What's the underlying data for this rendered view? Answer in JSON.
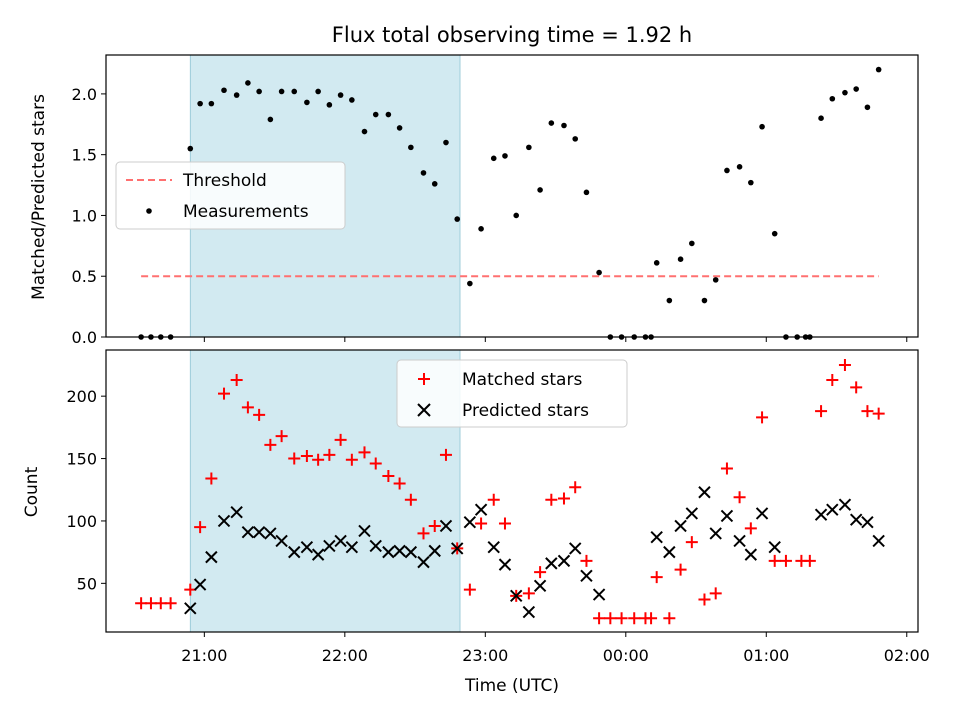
{
  "chart_data": {
    "type": "scatter",
    "title": "Flux total observing time = 1.92 h",
    "xlabel": "Time (UTC)",
    "x_unit": "hours since 21:00 UTC",
    "xlim": [
      -0.7,
      5.08
    ],
    "xticks": [
      {
        "value": 0,
        "label": "21:00"
      },
      {
        "value": 1,
        "label": "22:00"
      },
      {
        "value": 2,
        "label": "23:00"
      },
      {
        "value": 3,
        "label": "00:00"
      },
      {
        "value": 4,
        "label": "01:00"
      },
      {
        "value": 5,
        "label": "02:00"
      }
    ],
    "highlight_span": {
      "from": -0.1,
      "to": 1.82,
      "color": "#add8e6"
    },
    "panels": [
      {
        "name": "ratio",
        "ylabel": "Matched/Predicted stars",
        "ylim": [
          0,
          2.32
        ],
        "yticks": [
          {
            "value": 0,
            "label": "0.0"
          },
          {
            "value": 0.5,
            "label": "0.5"
          },
          {
            "value": 1.0,
            "label": "1.0"
          },
          {
            "value": 1.5,
            "label": "1.5"
          },
          {
            "value": 2.0,
            "label": "2.0"
          }
        ],
        "legend": {
          "position": "center-left"
        },
        "series": [
          {
            "name": "Threshold",
            "kind": "dashed-line",
            "color": "#ff7070",
            "y": 0.5,
            "x_range": [
              -0.45,
              4.8
            ]
          },
          {
            "name": "Measurements",
            "kind": "dots",
            "color": "#000000",
            "points": [
              [
                -0.45,
                0
              ],
              [
                -0.38,
                0
              ],
              [
                -0.31,
                0
              ],
              [
                -0.24,
                0
              ],
              [
                -0.1,
                1.55
              ],
              [
                -0.03,
                1.92
              ],
              [
                0.05,
                1.92
              ],
              [
                0.14,
                2.03
              ],
              [
                0.23,
                1.99
              ],
              [
                0.31,
                2.09
              ],
              [
                0.39,
                2.02
              ],
              [
                0.47,
                1.79
              ],
              [
                0.55,
                2.02
              ],
              [
                0.64,
                2.02
              ],
              [
                0.73,
                1.93
              ],
              [
                0.81,
                2.02
              ],
              [
                0.89,
                1.91
              ],
              [
                0.97,
                1.99
              ],
              [
                1.05,
                1.95
              ],
              [
                1.14,
                1.69
              ],
              [
                1.22,
                1.83
              ],
              [
                1.31,
                1.83
              ],
              [
                1.39,
                1.72
              ],
              [
                1.47,
                1.56
              ],
              [
                1.56,
                1.35
              ],
              [
                1.64,
                1.26
              ],
              [
                1.72,
                1.6
              ],
              [
                1.8,
                0.97
              ],
              [
                1.89,
                0.44
              ],
              [
                1.97,
                0.89
              ],
              [
                2.06,
                1.47
              ],
              [
                2.14,
                1.49
              ],
              [
                2.22,
                1.0
              ],
              [
                2.31,
                1.56
              ],
              [
                2.39,
                1.21
              ],
              [
                2.47,
                1.76
              ],
              [
                2.56,
                1.74
              ],
              [
                2.64,
                1.63
              ],
              [
                2.72,
                1.19
              ],
              [
                2.81,
                0.53
              ],
              [
                2.89,
                0
              ],
              [
                2.97,
                0
              ],
              [
                3.06,
                0
              ],
              [
                3.14,
                0
              ],
              [
                3.18,
                0
              ],
              [
                3.22,
                0.61
              ],
              [
                3.31,
                0.3
              ],
              [
                3.39,
                0.64
              ],
              [
                3.47,
                0.77
              ],
              [
                3.56,
                0.3
              ],
              [
                3.64,
                0.47
              ],
              [
                3.72,
                1.37
              ],
              [
                3.81,
                1.4
              ],
              [
                3.89,
                1.27
              ],
              [
                3.97,
                1.73
              ],
              [
                4.06,
                0.85
              ],
              [
                4.14,
                0
              ],
              [
                4.22,
                0
              ],
              [
                4.28,
                0
              ],
              [
                4.31,
                0
              ],
              [
                4.39,
                1.8
              ],
              [
                4.47,
                1.96
              ],
              [
                4.56,
                2.01
              ],
              [
                4.64,
                2.04
              ],
              [
                4.72,
                1.89
              ],
              [
                4.8,
                2.2
              ]
            ]
          }
        ]
      },
      {
        "name": "counts",
        "ylabel": "Count",
        "ylim": [
          11,
          237
        ],
        "yticks": [
          {
            "value": 50,
            "label": "50"
          },
          {
            "value": 100,
            "label": "100"
          },
          {
            "value": 150,
            "label": "150"
          },
          {
            "value": 200,
            "label": "200"
          }
        ],
        "legend": {
          "position": "upper-center"
        },
        "series": [
          {
            "name": "Matched stars",
            "marker": "plus",
            "color": "#ff0000",
            "points": [
              [
                -0.45,
                34
              ],
              [
                -0.38,
                34
              ],
              [
                -0.31,
                34
              ],
              [
                -0.24,
                34
              ],
              [
                -0.1,
                45
              ],
              [
                -0.03,
                95
              ],
              [
                0.05,
                134
              ],
              [
                0.14,
                202
              ],
              [
                0.23,
                213
              ],
              [
                0.31,
                191
              ],
              [
                0.39,
                185
              ],
              [
                0.47,
                161
              ],
              [
                0.55,
                168
              ],
              [
                0.64,
                150
              ],
              [
                0.73,
                152
              ],
              [
                0.81,
                149
              ],
              [
                0.89,
                153
              ],
              [
                0.97,
                165
              ],
              [
                1.05,
                149
              ],
              [
                1.14,
                155
              ],
              [
                1.22,
                146
              ],
              [
                1.31,
                136
              ],
              [
                1.39,
                130
              ],
              [
                1.47,
                117
              ],
              [
                1.56,
                90
              ],
              [
                1.64,
                96
              ],
              [
                1.72,
                153
              ],
              [
                1.8,
                78
              ],
              [
                1.89,
                45
              ],
              [
                1.97,
                98
              ],
              [
                2.06,
                117
              ],
              [
                2.14,
                98
              ],
              [
                2.22,
                40
              ],
              [
                2.31,
                42
              ],
              [
                2.39,
                59
              ],
              [
                2.47,
                117
              ],
              [
                2.56,
                118
              ],
              [
                2.64,
                127
              ],
              [
                2.72,
                68
              ],
              [
                2.81,
                22
              ],
              [
                2.89,
                22
              ],
              [
                2.97,
                22
              ],
              [
                3.06,
                22
              ],
              [
                3.14,
                22
              ],
              [
                3.18,
                22
              ],
              [
                3.22,
                55
              ],
              [
                3.31,
                22
              ],
              [
                3.39,
                61
              ],
              [
                3.47,
                83
              ],
              [
                3.56,
                37
              ],
              [
                3.64,
                42
              ],
              [
                3.72,
                142
              ],
              [
                3.81,
                119
              ],
              [
                3.89,
                94
              ],
              [
                3.97,
                183
              ],
              [
                4.06,
                68
              ],
              [
                4.14,
                68
              ],
              [
                4.25,
                68
              ],
              [
                4.31,
                68
              ],
              [
                4.39,
                188
              ],
              [
                4.47,
                213
              ],
              [
                4.56,
                225
              ],
              [
                4.64,
                207
              ],
              [
                4.72,
                188
              ],
              [
                4.8,
                186
              ]
            ]
          },
          {
            "name": "Predicted stars",
            "marker": "x",
            "color": "#000000",
            "points": [
              [
                -0.1,
                30
              ],
              [
                -0.03,
                49
              ],
              [
                0.05,
                71
              ],
              [
                0.14,
                100
              ],
              [
                0.23,
                107
              ],
              [
                0.31,
                91
              ],
              [
                0.39,
                91
              ],
              [
                0.47,
                90
              ],
              [
                0.55,
                84
              ],
              [
                0.64,
                75
              ],
              [
                0.73,
                79
              ],
              [
                0.81,
                73
              ],
              [
                0.89,
                80
              ],
              [
                0.97,
                84
              ],
              [
                1.05,
                79
              ],
              [
                1.14,
                92
              ],
              [
                1.22,
                80
              ],
              [
                1.31,
                75
              ],
              [
                1.39,
                76
              ],
              [
                1.47,
                75
              ],
              [
                1.56,
                67
              ],
              [
                1.64,
                76
              ],
              [
                1.72,
                96
              ],
              [
                1.8,
                78
              ],
              [
                1.89,
                99
              ],
              [
                1.97,
                109
              ],
              [
                2.06,
                79
              ],
              [
                2.14,
                65
              ],
              [
                2.22,
                40
              ],
              [
                2.31,
                27
              ],
              [
                2.39,
                48
              ],
              [
                2.47,
                66
              ],
              [
                2.56,
                68
              ],
              [
                2.64,
                78
              ],
              [
                2.72,
                56
              ],
              [
                2.81,
                41
              ],
              [
                3.22,
                87
              ],
              [
                3.31,
                75
              ],
              [
                3.39,
                96
              ],
              [
                3.47,
                106
              ],
              [
                3.56,
                123
              ],
              [
                3.64,
                90
              ],
              [
                3.72,
                104
              ],
              [
                3.81,
                84
              ],
              [
                3.89,
                73
              ],
              [
                3.97,
                106
              ],
              [
                4.06,
                79
              ],
              [
                4.39,
                105
              ],
              [
                4.47,
                109
              ],
              [
                4.56,
                113
              ],
              [
                4.64,
                101
              ],
              [
                4.72,
                99
              ],
              [
                4.8,
                84
              ]
            ]
          }
        ]
      }
    ]
  }
}
